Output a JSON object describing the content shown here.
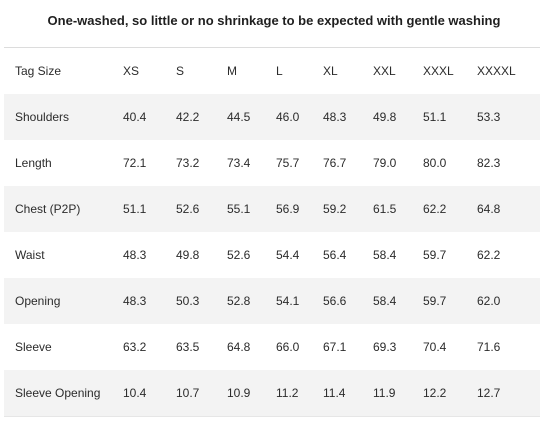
{
  "caption": "One-washed, so little or no shrinkage to be expected with gentle washing",
  "table": {
    "header": [
      "Tag Size",
      "XS",
      "S",
      "M",
      "L",
      "XL",
      "XXL",
      "XXXL",
      "XXXXL"
    ],
    "rows": [
      {
        "label": "Shoulders",
        "values": [
          "40.4",
          "42.2",
          "44.5",
          "46.0",
          "48.3",
          "49.8",
          "51.1",
          "53.3"
        ]
      },
      {
        "label": "Length",
        "values": [
          "72.1",
          "73.2",
          "73.4",
          "75.7",
          "76.7",
          "79.0",
          "80.0",
          "82.3"
        ]
      },
      {
        "label": "Chest (P2P)",
        "values": [
          "51.1",
          "52.6",
          "55.1",
          "56.9",
          "59.2",
          "61.5",
          "62.2",
          "64.8"
        ]
      },
      {
        "label": "Waist",
        "values": [
          "48.3",
          "49.8",
          "52.6",
          "54.4",
          "56.4",
          "58.4",
          "59.7",
          "62.2"
        ]
      },
      {
        "label": "Opening",
        "values": [
          "48.3",
          "50.3",
          "52.8",
          "54.1",
          "56.6",
          "58.4",
          "59.7",
          "62.0"
        ]
      },
      {
        "label": "Sleeve",
        "values": [
          "63.2",
          "63.5",
          "64.8",
          "66.0",
          "67.1",
          "69.3",
          "70.4",
          "71.6"
        ]
      },
      {
        "label": "Sleeve Opening",
        "values": [
          "10.4",
          "10.7",
          "10.9",
          "11.2",
          "11.4",
          "11.9",
          "12.2",
          "12.7"
        ]
      }
    ]
  },
  "colors": {
    "text": "#2b2b2b",
    "stripe": "#f3f3f3",
    "border": "#dcdcdc"
  }
}
